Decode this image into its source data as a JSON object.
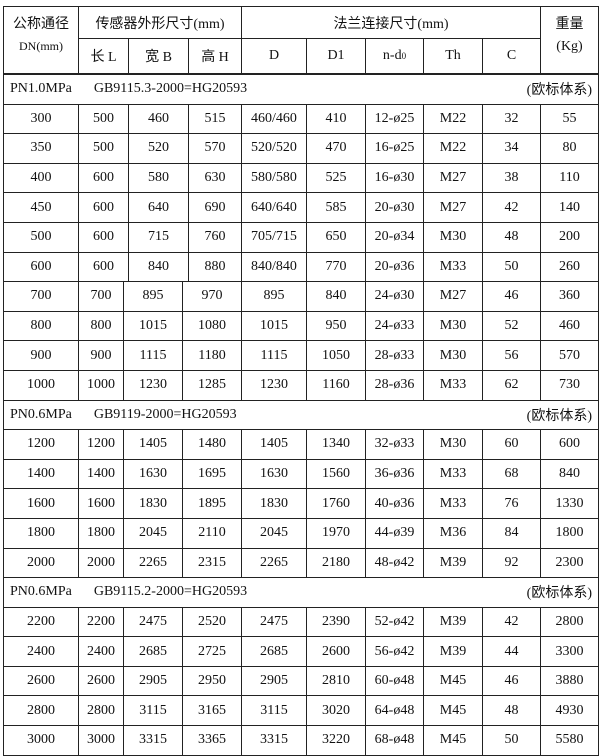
{
  "header": {
    "dn_title": "公称通径",
    "dn_unit": "DN(mm)",
    "sensor_group": "传感器外形尺寸(mm)",
    "flange_group": "法兰连接尺寸(mm)",
    "weight_title": "重量",
    "weight_unit": "(Kg)",
    "cols": [
      "长 L",
      "宽 B",
      "高 H",
      "D",
      "D1",
      "n-d",
      "Th",
      "C"
    ],
    "nd_sub": "0"
  },
  "sections": [
    {
      "pressure": "PN1.0MPa",
      "standard": "GB9115.3-2000=HG20593",
      "system": "(欧标体系)",
      "rows": [
        [
          "300",
          "500",
          "460",
          "515",
          "460/460",
          "410",
          "12-ø25",
          "M22",
          "32",
          "55"
        ],
        [
          "350",
          "500",
          "520",
          "570",
          "520/520",
          "470",
          "16-ø25",
          "M22",
          "34",
          "80"
        ],
        [
          "400",
          "600",
          "580",
          "630",
          "580/580",
          "525",
          "16-ø30",
          "M27",
          "38",
          "110"
        ],
        [
          "450",
          "600",
          "640",
          "690",
          "640/640",
          "585",
          "20-ø30",
          "M27",
          "42",
          "140"
        ],
        [
          "500",
          "600",
          "715",
          "760",
          "705/715",
          "650",
          "20-ø34",
          "M30",
          "48",
          "200"
        ],
        [
          "600",
          "600",
          "840",
          "880",
          "840/840",
          "770",
          "20-ø36",
          "M33",
          "50",
          "260"
        ],
        [
          "700",
          "700",
          "895",
          "970",
          "895",
          "840",
          "24-ø30",
          "M27",
          "46",
          "360"
        ],
        [
          "800",
          "800",
          "1015",
          "1080",
          "1015",
          "950",
          "24-ø33",
          "M30",
          "52",
          "460"
        ],
        [
          "900",
          "900",
          "1115",
          "1180",
          "1115",
          "1050",
          "28-ø33",
          "M30",
          "56",
          "570"
        ],
        [
          "1000",
          "1000",
          "1230",
          "1285",
          "1230",
          "1160",
          "28-ø36",
          "M33",
          "62",
          "730"
        ]
      ]
    },
    {
      "pressure": "PN0.6MPa",
      "standard": "GB9119-2000=HG20593",
      "system": "(欧标体系)",
      "rows": [
        [
          "1200",
          "1200",
          "1405",
          "1480",
          "1405",
          "1340",
          "32-ø33",
          "M30",
          "60",
          "600"
        ],
        [
          "1400",
          "1400",
          "1630",
          "1695",
          "1630",
          "1560",
          "36-ø36",
          "M33",
          "68",
          "840"
        ],
        [
          "1600",
          "1600",
          "1830",
          "1895",
          "1830",
          "1760",
          "40-ø36",
          "M33",
          "76",
          "1330"
        ],
        [
          "1800",
          "1800",
          "2045",
          "2110",
          "2045",
          "1970",
          "44-ø39",
          "M36",
          "84",
          "1800"
        ],
        [
          "2000",
          "2000",
          "2265",
          "2315",
          "2265",
          "2180",
          "48-ø42",
          "M39",
          "92",
          "2300"
        ]
      ]
    },
    {
      "pressure": "PN0.6MPa",
      "standard": "GB9115.2-2000=HG20593",
      "system": "(欧标体系)",
      "rows": [
        [
          "2200",
          "2200",
          "2475",
          "2520",
          "2475",
          "2390",
          "52-ø42",
          "M39",
          "42",
          "2800"
        ],
        [
          "2400",
          "2400",
          "2685",
          "2725",
          "2685",
          "2600",
          "56-ø42",
          "M39",
          "44",
          "3300"
        ],
        [
          "2600",
          "2600",
          "2905",
          "2950",
          "2905",
          "2810",
          "60-ø48",
          "M45",
          "46",
          "3880"
        ],
        [
          "2800",
          "2800",
          "3115",
          "3165",
          "3115",
          "3020",
          "64-ø48",
          "M45",
          "48",
          "4930"
        ],
        [
          "3000",
          "3000",
          "3315",
          "3365",
          "3315",
          "3220",
          "68-ø48",
          "M45",
          "50",
          "5580"
        ]
      ]
    }
  ]
}
